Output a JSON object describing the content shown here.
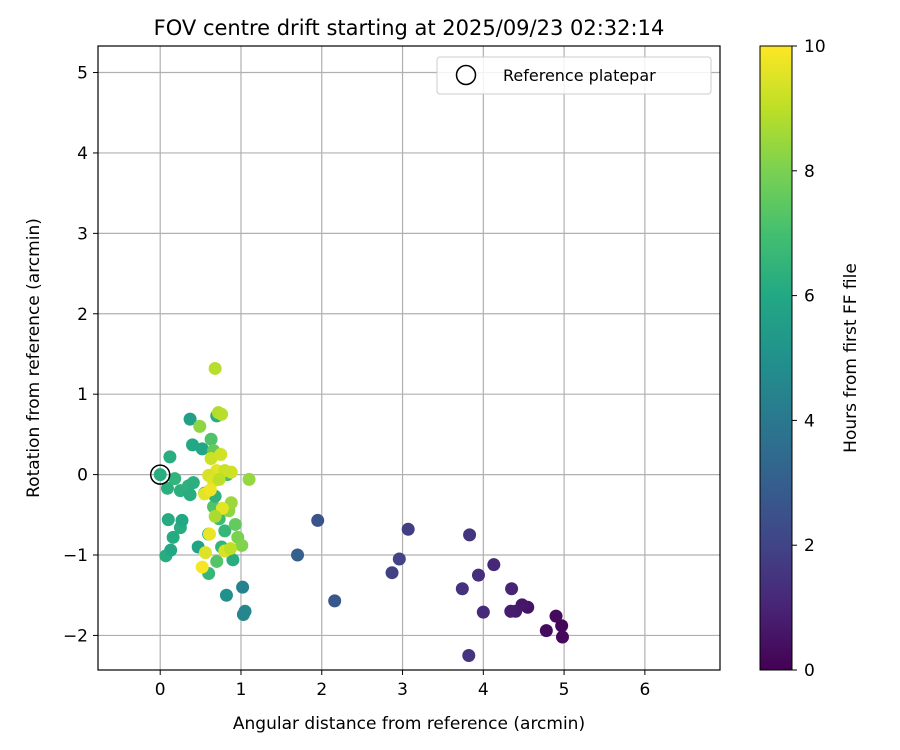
{
  "chart_data": {
    "type": "scatter",
    "title": "FOV centre drift starting at 2025/09/23 02:32:14",
    "xlabel": "Angular distance from reference (arcmin)",
    "ylabel": "Rotation from reference (arcmin)",
    "xlim": [
      -0.77,
      6.93
    ],
    "ylim": [
      -2.43,
      5.33
    ],
    "x_ticks": [
      0,
      1,
      2,
      3,
      4,
      5,
      6
    ],
    "y_ticks": [
      -2,
      -1,
      0,
      1,
      2,
      3,
      4,
      5
    ],
    "grid": true,
    "legend": {
      "position": "top-right",
      "entries": [
        "Reference platepar"
      ]
    },
    "colorbar": {
      "label": "Hours from first FF file",
      "range": [
        0,
        10
      ],
      "ticks": [
        0,
        2,
        4,
        6,
        8,
        10
      ],
      "colormap": "viridis"
    },
    "reference_point": {
      "x": 0,
      "y": 0,
      "label": "Reference platepar"
    },
    "points": [
      {
        "x": 4.97,
        "y": -1.88,
        "h": 0.15
      },
      {
        "x": 4.98,
        "y": -2.02,
        "h": 0.2
      },
      {
        "x": 4.78,
        "y": -1.94,
        "h": 0.3
      },
      {
        "x": 4.9,
        "y": -1.76,
        "h": 0.25
      },
      {
        "x": 4.55,
        "y": -1.65,
        "h": 0.5
      },
      {
        "x": 4.48,
        "y": -1.62,
        "h": 0.6
      },
      {
        "x": 4.4,
        "y": -1.7,
        "h": 0.7
      },
      {
        "x": 4.34,
        "y": -1.7,
        "h": 0.8
      },
      {
        "x": 4.35,
        "y": -1.42,
        "h": 1.0
      },
      {
        "x": 4.13,
        "y": -1.12,
        "h": 1.1
      },
      {
        "x": 4.0,
        "y": -1.71,
        "h": 1.2
      },
      {
        "x": 3.94,
        "y": -1.25,
        "h": 1.3
      },
      {
        "x": 3.74,
        "y": -1.42,
        "h": 1.4
      },
      {
        "x": 3.83,
        "y": -0.75,
        "h": 1.5
      },
      {
        "x": 3.82,
        "y": -2.25,
        "h": 1.5
      },
      {
        "x": 3.07,
        "y": -0.68,
        "h": 1.8
      },
      {
        "x": 2.96,
        "y": -1.05,
        "h": 2.0
      },
      {
        "x": 2.87,
        "y": -1.22,
        "h": 1.9
      },
      {
        "x": 1.95,
        "y": -0.57,
        "h": 2.6
      },
      {
        "x": 2.16,
        "y": -1.57,
        "h": 2.7
      },
      {
        "x": 1.7,
        "y": -1.0,
        "h": 3.0
      },
      {
        "x": 1.02,
        "y": -1.4,
        "h": 4.4
      },
      {
        "x": 1.05,
        "y": -1.7,
        "h": 4.6
      },
      {
        "x": 1.03,
        "y": -1.74,
        "h": 4.5
      },
      {
        "x": 0.82,
        "y": -1.5,
        "h": 5.0
      },
      {
        "x": 0.07,
        "y": -1.01,
        "h": 6.2
      },
      {
        "x": 0.13,
        "y": -0.94,
        "h": 6.0
      },
      {
        "x": 0.16,
        "y": -0.78,
        "h": 6.1
      },
      {
        "x": 0.25,
        "y": -0.66,
        "h": 6.2
      },
      {
        "x": 0.27,
        "y": -0.57,
        "h": 6.0
      },
      {
        "x": 0.1,
        "y": -0.56,
        "h": 6.1
      },
      {
        "x": 0.09,
        "y": -0.17,
        "h": 6.3
      },
      {
        "x": 0.12,
        "y": 0.22,
        "h": 6.2
      },
      {
        "x": 0.18,
        "y": -0.05,
        "h": 6.5
      },
      {
        "x": 0.25,
        "y": -0.2,
        "h": 6.3
      },
      {
        "x": 0.35,
        "y": -0.14,
        "h": 6.4
      },
      {
        "x": 0.37,
        "y": -0.25,
        "h": 6.2
      },
      {
        "x": 0.41,
        "y": -0.1,
        "h": 6.3
      },
      {
        "x": 0.37,
        "y": 0.69,
        "h": 5.6
      },
      {
        "x": 0.4,
        "y": 0.37,
        "h": 6.0
      },
      {
        "x": 0.47,
        "y": -0.9,
        "h": 5.8
      },
      {
        "x": 0.52,
        "y": 0.32,
        "h": 5.9
      },
      {
        "x": 0.49,
        "y": 0.6,
        "h": 8.3
      },
      {
        "x": 0.55,
        "y": -0.23,
        "h": 6.6
      },
      {
        "x": 0.6,
        "y": -0.74,
        "h": 6.1
      },
      {
        "x": 0.6,
        "y": -1.23,
        "h": 6.6
      },
      {
        "x": 0.63,
        "y": 0.44,
        "h": 7.2
      },
      {
        "x": 0.66,
        "y": 0.3,
        "h": 7.6
      },
      {
        "x": 0.7,
        "y": 0.73,
        "h": 6.2
      },
      {
        "x": 0.66,
        "y": -0.4,
        "h": 7.2
      },
      {
        "x": 0.68,
        "y": -0.27,
        "h": 6.4
      },
      {
        "x": 0.7,
        "y": -1.08,
        "h": 7.3
      },
      {
        "x": 0.73,
        "y": -0.55,
        "h": 6.8
      },
      {
        "x": 0.76,
        "y": -0.9,
        "h": 6.5
      },
      {
        "x": 0.8,
        "y": -0.7,
        "h": 6.6
      },
      {
        "x": 0.83,
        "y": 0.0,
        "h": 6.9
      },
      {
        "x": 0.9,
        "y": -1.06,
        "h": 6.2
      },
      {
        "x": 0.93,
        "y": -0.62,
        "h": 7.6
      },
      {
        "x": 0.85,
        "y": -0.45,
        "h": 8.3
      },
      {
        "x": 0.96,
        "y": -0.78,
        "h": 8.0
      },
      {
        "x": 1.01,
        "y": -0.88,
        "h": 8.1
      },
      {
        "x": 0.88,
        "y": -0.35,
        "h": 8.5
      },
      {
        "x": 1.1,
        "y": -0.06,
        "h": 8.4
      },
      {
        "x": 0.68,
        "y": 1.32,
        "h": 8.9
      },
      {
        "x": 0.72,
        "y": 0.77,
        "h": 8.8
      },
      {
        "x": 0.76,
        "y": 0.75,
        "h": 8.9
      },
      {
        "x": 0.63,
        "y": 0.2,
        "h": 9.2
      },
      {
        "x": 0.75,
        "y": 0.25,
        "h": 9.3
      },
      {
        "x": 0.7,
        "y": 0.05,
        "h": 9.6
      },
      {
        "x": 0.6,
        "y": -0.01,
        "h": 9.4
      },
      {
        "x": 0.66,
        "y": -0.08,
        "h": 9.5
      },
      {
        "x": 0.55,
        "y": -0.24,
        "h": 9.6
      },
      {
        "x": 0.62,
        "y": -0.19,
        "h": 9.8
      },
      {
        "x": 0.77,
        "y": -0.42,
        "h": 9.6
      },
      {
        "x": 0.61,
        "y": -0.74,
        "h": 9.7
      },
      {
        "x": 0.56,
        "y": -0.97,
        "h": 9.5
      },
      {
        "x": 0.52,
        "y": -1.15,
        "h": 9.9
      },
      {
        "x": 0.8,
        "y": -0.95,
        "h": 9.4
      },
      {
        "x": 0.87,
        "y": -0.92,
        "h": 9.0
      },
      {
        "x": 0.88,
        "y": 0.03,
        "h": 9.3
      },
      {
        "x": 0.8,
        "y": 0.05,
        "h": 9.2
      },
      {
        "x": 0.73,
        "y": -0.06,
        "h": 9.0
      },
      {
        "x": 0.68,
        "y": -0.52,
        "h": 8.7
      }
    ]
  }
}
